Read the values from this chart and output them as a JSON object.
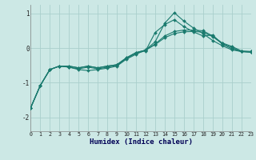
{
  "background_color": "#cce8e5",
  "grid_color": "#aacfcc",
  "line_color": "#1a7a6e",
  "xlabel": "Humidex (Indice chaleur)",
  "xlim": [
    0,
    23
  ],
  "ylim": [
    -2.4,
    1.25
  ],
  "yticks": [
    -2,
    -1,
    0,
    1
  ],
  "xticks": [
    0,
    1,
    2,
    3,
    4,
    5,
    6,
    7,
    8,
    9,
    10,
    11,
    12,
    13,
    14,
    15,
    16,
    17,
    18,
    19,
    20,
    21,
    22,
    23
  ],
  "series": [
    {
      "x": [
        0,
        1,
        2,
        3,
        4,
        5,
        6,
        7,
        8,
        9,
        10,
        11,
        12,
        13,
        14,
        15,
        16,
        17,
        18,
        19,
        20,
        21,
        22,
        23
      ],
      "y": [
        -1.72,
        -1.08,
        -0.62,
        -0.52,
        -0.55,
        -0.62,
        -0.65,
        -0.62,
        -0.58,
        -0.52,
        -0.32,
        -0.18,
        -0.05,
        0.18,
        0.72,
        1.02,
        0.78,
        0.58,
        0.42,
        0.22,
        0.07,
        -0.05,
        -0.1,
        -0.1
      ]
    },
    {
      "x": [
        0,
        1,
        2,
        3,
        4,
        5,
        6,
        7,
        8,
        9,
        10,
        11,
        12,
        13,
        14,
        15,
        16,
        17,
        18,
        19,
        20,
        21,
        22,
        23
      ],
      "y": [
        -1.72,
        -1.08,
        -0.62,
        -0.52,
        -0.55,
        -0.6,
        -0.55,
        -0.6,
        -0.55,
        -0.5,
        -0.3,
        -0.15,
        -0.08,
        0.45,
        0.68,
        0.82,
        0.62,
        0.47,
        0.35,
        0.38,
        0.12,
        -0.02,
        -0.1,
        -0.12
      ]
    },
    {
      "x": [
        0,
        1,
        2,
        3,
        4,
        5,
        6,
        7,
        8,
        9,
        10,
        11,
        12,
        13,
        14,
        15,
        16,
        17,
        18,
        19,
        20,
        21,
        22,
        23
      ],
      "y": [
        -1.72,
        -1.08,
        -0.62,
        -0.52,
        -0.52,
        -0.57,
        -0.52,
        -0.57,
        -0.52,
        -0.48,
        -0.28,
        -0.13,
        -0.06,
        0.12,
        0.35,
        0.48,
        0.52,
        0.52,
        0.5,
        0.35,
        0.15,
        0.05,
        -0.08,
        -0.1
      ]
    },
    {
      "x": [
        0,
        1,
        2,
        3,
        4,
        5,
        6,
        7,
        8,
        9,
        10,
        11,
        12,
        13,
        14,
        15,
        16,
        17,
        18,
        19,
        20,
        21,
        22,
        23
      ],
      "y": [
        -1.72,
        -1.08,
        -0.62,
        -0.52,
        -0.52,
        -0.57,
        -0.52,
        -0.57,
        -0.52,
        -0.48,
        -0.28,
        -0.13,
        -0.06,
        0.1,
        0.3,
        0.42,
        0.47,
        0.48,
        0.46,
        0.33,
        0.13,
        0.02,
        -0.1,
        -0.12
      ]
    }
  ]
}
